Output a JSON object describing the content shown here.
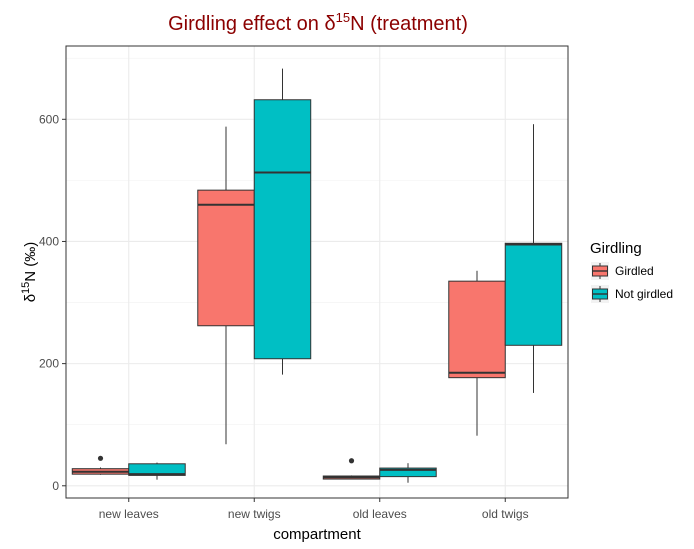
{
  "chart_data": {
    "type": "box",
    "title_main": "Girdling effect on δ",
    "title_sup": "15",
    "title_end": "N (treatment)",
    "xlabel": "compartment",
    "ylabel_main": "δ",
    "ylabel_sup": "15",
    "ylabel_end": "N (‰)",
    "categories": [
      "new leaves",
      "new twigs",
      "old leaves",
      "old twigs"
    ],
    "ylim": [
      -20,
      720
    ],
    "yticks": [
      0,
      200,
      400,
      600
    ],
    "grid": true,
    "legend_position": "right",
    "legend_title": "Girdling",
    "series": [
      {
        "name": "Girdled",
        "color": "#f8766d",
        "boxes": [
          {
            "min": 18,
            "q1": 19,
            "median": 23,
            "q3": 28,
            "max": 30,
            "outliers": [
              45
            ]
          },
          {
            "min": 68,
            "q1": 262,
            "median": 460,
            "q3": 484,
            "max": 588,
            "outliers": []
          },
          {
            "min": 11,
            "q1": 11,
            "median": 14,
            "q3": 16,
            "max": 17,
            "outliers": [
              41
            ]
          },
          {
            "min": 82,
            "q1": 177,
            "median": 185,
            "q3": 335,
            "max": 352,
            "outliers": []
          }
        ]
      },
      {
        "name": "Not girdled",
        "color": "#00bfc4",
        "boxes": [
          {
            "min": 10,
            "q1": 17,
            "median": 19,
            "q3": 36,
            "max": 38,
            "outliers": []
          },
          {
            "min": 182,
            "q1": 208,
            "median": 513,
            "q3": 632,
            "max": 683,
            "outliers": []
          },
          {
            "min": 5,
            "q1": 15,
            "median": 26,
            "q3": 29,
            "max": 37,
            "outliers": []
          },
          {
            "min": 152,
            "q1": 230,
            "median": 395,
            "q3": 397,
            "max": 592,
            "outliers": []
          }
        ]
      }
    ]
  }
}
